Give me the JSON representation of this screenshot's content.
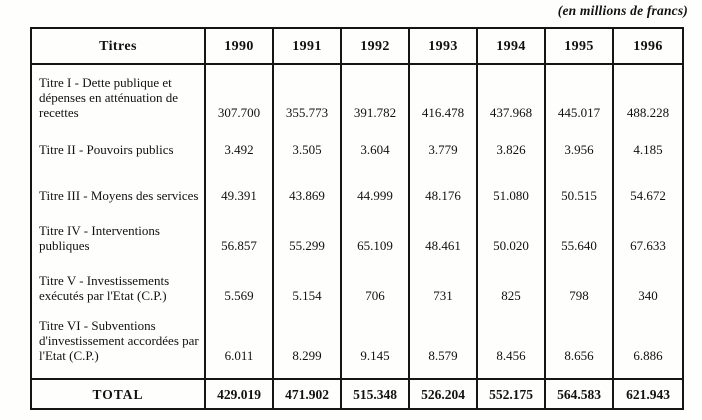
{
  "note": "(en millions de francs)",
  "table": {
    "header": {
      "titles_label": "Titres",
      "years": [
        "1990",
        "1991",
        "1992",
        "1993",
        "1994",
        "1995",
        "1996"
      ]
    },
    "rows": [
      {
        "label": "Titre I - Dette publique et dépenses en atténuation de recettes",
        "values": [
          "307.700",
          "355.773",
          "391.782",
          "416.478",
          "437.968",
          "445.017",
          "488.228"
        ]
      },
      {
        "label": "Titre II - Pouvoirs publics",
        "values": [
          "3.492",
          "3.505",
          "3.604",
          "3.779",
          "3.826",
          "3.956",
          "4.185"
        ]
      },
      {
        "label": "Titre III - Moyens des services",
        "values": [
          "49.391",
          "43.869",
          "44.999",
          "48.176",
          "51.080",
          "50.515",
          "54.672"
        ]
      },
      {
        "label": "Titre IV - Interventions publiques",
        "values": [
          "56.857",
          "55.299",
          "65.109",
          "48.461",
          "50.020",
          "55.640",
          "67.633"
        ]
      },
      {
        "label": "Titre V - Investissements exécutés par l'Etat (C.P.)",
        "values": [
          "5.569",
          "5.154",
          "706",
          "731",
          "825",
          "798",
          "340"
        ]
      },
      {
        "label": "Titre VI - Subventions d'investissement accordées par l'Etat (C.P.)",
        "values": [
          "6.011",
          "8.299",
          "9.145",
          "8.579",
          "8.456",
          "8.656",
          "6.886"
        ]
      }
    ],
    "total": {
      "label": "TOTAL",
      "values": [
        "429.019",
        "471.902",
        "515.348",
        "526.204",
        "552.175",
        "564.583",
        "621.943"
      ]
    }
  }
}
